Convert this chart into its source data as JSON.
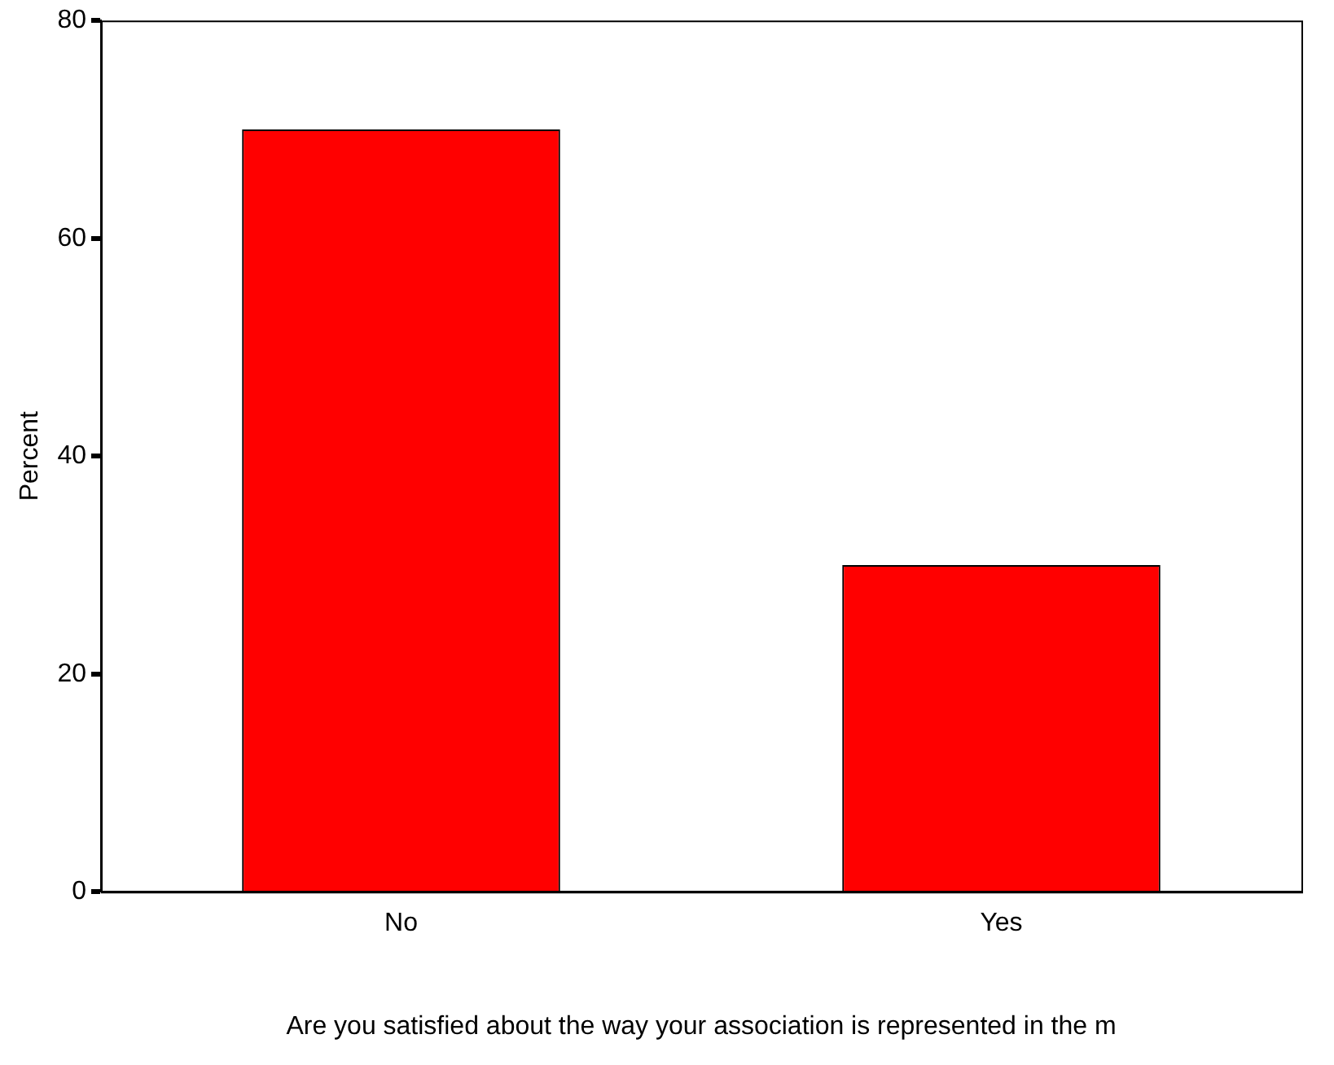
{
  "chart_data": {
    "type": "bar",
    "categories": [
      "No",
      "Yes"
    ],
    "values": [
      70,
      30
    ],
    "color": "#ff0000",
    "ylabel": "Percent",
    "xlabel": "Are you satisfied about the way your association is represented in the m",
    "ylim": [
      0,
      80
    ],
    "yticks": [
      0,
      20,
      40,
      60,
      80
    ],
    "grid": false,
    "legend": false
  }
}
